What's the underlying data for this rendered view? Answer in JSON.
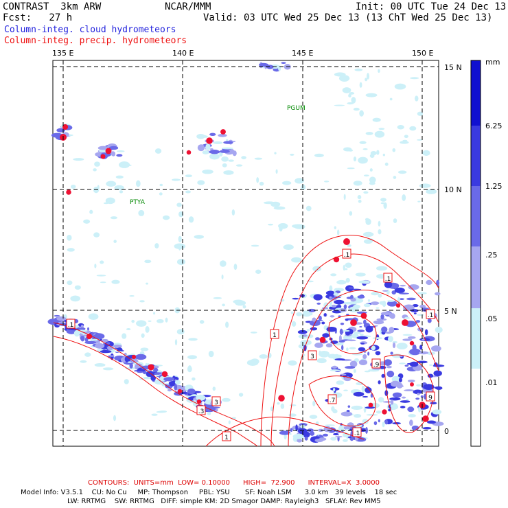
{
  "header": {
    "title": "CONTRAST  3km ARW",
    "org": "NCAR/MMM",
    "init": "Init: 00 UTC Tue 24 Dec 13",
    "fcst": "Fcst:   27 h",
    "valid": "Valid: 03 UTC Wed 25 Dec 13 (13 ChT Wed 25 Dec 13)",
    "field1": "Column-integ. cloud hydrometeors",
    "field2": "Column-integ. precip. hydrometeors"
  },
  "axes": {
    "lon_labels": [
      "135 E",
      "140 E",
      "145 E",
      "150 E"
    ],
    "lat_labels": [
      "15 N",
      "10 N",
      "5 N",
      "0"
    ]
  },
  "places": [
    {
      "name": "PGUM"
    },
    {
      "name": "PTYA"
    }
  ],
  "contour_labels": [
    ".1",
    ".1",
    ".1",
    ".1",
    "1",
    "3",
    "3",
    ".9",
    "9",
    "1",
    ".1",
    ".3",
    ".7"
  ],
  "colorbar": {
    "unit": "mm",
    "levels": [
      "6.25",
      "1.25",
      ".25",
      ".05",
      ".01"
    ],
    "colors": [
      "#1010d0",
      "#3a3ae0",
      "#6a6ae8",
      "#a6a6f0",
      "#ccf0f8",
      "#ffffff"
    ]
  },
  "footer": {
    "contours": "CONTOURS:  UNITS=mm  LOW= 0.10000      HIGH=  72.900      INTERVAL=X  3.0000",
    "model1": "Model Info: V3.5.1    CU: No Cu     MP: Thompson     PBL: YSU       SF: Noah LSM      3.0 km   39 levels    18 sec",
    "model2": "LW: RRTMG    SW: RRTMG   DIFF: simple KM: 2D Smagor DAMP: Rayleigh3   SFLAY: Rev MM5"
  },
  "colors": {
    "contour": "#ee1111",
    "cloud_blue": "#5555dd",
    "grid": "#000000"
  }
}
